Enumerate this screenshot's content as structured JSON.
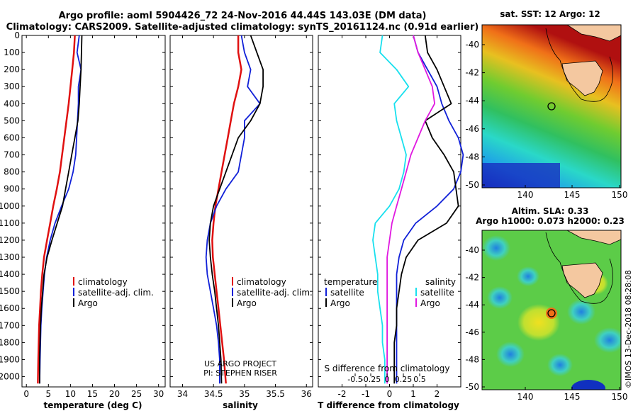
{
  "header": {
    "line1": "Argo profile: aoml 5904426_72 24-Nov-2016 44.44S 143.03E (DM data)",
    "line2": "Climatology: CARS2009. Satellite-adjusted climatology: synTS_20161124.nc (0.91d earlier)"
  },
  "colors": {
    "climatology": "#e01010",
    "satellite": "#1020d8",
    "argo": "#000000",
    "sat_salinity": "#18e0ee",
    "argo_salinity": "#e018e0"
  },
  "chart_data": [
    {
      "id": "temperature",
      "type": "line",
      "xlabel": "temperature (deg C)",
      "ylabel": "",
      "xlim": [
        -1,
        31.5
      ],
      "ylim": [
        2060,
        0
      ],
      "xticks": [
        0,
        5,
        10,
        15,
        20,
        25,
        30
      ],
      "yticks": [
        0,
        100,
        200,
        300,
        400,
        500,
        600,
        700,
        800,
        900,
        1000,
        1100,
        1200,
        1300,
        1400,
        1500,
        1600,
        1700,
        1800,
        1900,
        2000
      ],
      "legend": [
        "climatology",
        "satellite-adj. clim.",
        "Argo"
      ],
      "series": [
        {
          "name": "climatology",
          "color": "#e01010",
          "x": [
            11.0,
            10.8,
            10.4,
            10.0,
            9.6,
            9.1,
            8.6,
            8.1,
            7.6,
            6.9,
            6.1,
            5.4,
            4.7,
            4.0,
            3.6,
            3.3,
            3.1,
            2.9,
            2.8,
            2.7,
            2.6
          ],
          "y": [
            0,
            100,
            200,
            300,
            400,
            500,
            600,
            700,
            800,
            900,
            1000,
            1100,
            1200,
            1300,
            1400,
            1500,
            1600,
            1700,
            1800,
            1900,
            2040
          ]
        },
        {
          "name": "satellite-adj. clim.",
          "color": "#1020d8",
          "x": [
            12.0,
            11.5,
            12.4,
            11.8,
            11.8,
            11.6,
            11.4,
            11.2,
            10.6,
            9.6,
            8.0,
            6.5,
            5.4,
            4.6,
            4.1,
            3.8,
            3.5,
            3.3,
            3.2,
            3.1,
            3.0
          ],
          "y": [
            0,
            100,
            200,
            300,
            400,
            500,
            600,
            700,
            800,
            900,
            1000,
            1100,
            1200,
            1300,
            1400,
            1500,
            1600,
            1700,
            1800,
            1900,
            2040
          ]
        },
        {
          "name": "Argo",
          "color": "#000000",
          "x": [
            12.6,
            12.5,
            12.4,
            12.2,
            12.0,
            11.7,
            11.0,
            10.3,
            9.6,
            8.9,
            8.2,
            7.0,
            5.8,
            4.7,
            4.0,
            3.7,
            3.4,
            3.2,
            3.1,
            3.0,
            3.0
          ],
          "y": [
            0,
            100,
            200,
            300,
            400,
            500,
            600,
            700,
            800,
            900,
            1000,
            1100,
            1200,
            1300,
            1400,
            1500,
            1600,
            1700,
            1800,
            1900,
            2040
          ]
        }
      ]
    },
    {
      "id": "salinity",
      "type": "line",
      "xlabel": "salinity",
      "xlim": [
        33.8,
        36.1
      ],
      "ylim": [
        2060,
        0
      ],
      "xticks": [
        34,
        34.5,
        35,
        35.5,
        36
      ],
      "legend": [
        "climatology",
        "satellite-adj. clim.",
        "Argo"
      ],
      "credit": [
        "US ARGO PROJECT",
        "PI: STEPHEN RISER"
      ],
      "series": [
        {
          "name": "climatology",
          "color": "#e01010",
          "x": [
            34.9,
            34.9,
            34.95,
            34.9,
            34.83,
            34.78,
            34.73,
            34.68,
            34.63,
            34.58,
            34.53,
            34.5,
            34.48,
            34.49,
            34.52,
            34.55,
            34.58,
            34.61,
            34.64,
            34.67,
            34.7
          ],
          "y": [
            0,
            100,
            200,
            300,
            400,
            500,
            600,
            700,
            800,
            900,
            1000,
            1100,
            1200,
            1300,
            1400,
            1500,
            1600,
            1700,
            1800,
            1900,
            2040
          ]
        },
        {
          "name": "satellite-adj. clim.",
          "color": "#1020d8",
          "x": [
            34.95,
            35.0,
            35.1,
            35.05,
            35.25,
            35.0,
            35.0,
            34.95,
            34.9,
            34.7,
            34.55,
            34.45,
            34.4,
            34.38,
            34.4,
            34.45,
            34.5,
            34.55,
            34.58,
            34.6,
            34.6
          ],
          "y": [
            0,
            100,
            200,
            300,
            400,
            500,
            600,
            700,
            800,
            900,
            1000,
            1100,
            1200,
            1300,
            1400,
            1500,
            1600,
            1700,
            1800,
            1900,
            2040
          ]
        },
        {
          "name": "Argo",
          "color": "#000000",
          "x": [
            35.1,
            35.2,
            35.3,
            35.3,
            35.25,
            35.1,
            34.9,
            34.8,
            34.7,
            34.6,
            34.5,
            34.45,
            34.43,
            34.45,
            34.48,
            34.52,
            34.55,
            34.58,
            34.6,
            34.62,
            34.63
          ],
          "y": [
            0,
            100,
            200,
            300,
            400,
            500,
            600,
            700,
            800,
            900,
            1000,
            1100,
            1200,
            1300,
            1400,
            1500,
            1600,
            1700,
            1800,
            1900,
            2040
          ]
        }
      ]
    },
    {
      "id": "difference",
      "type": "line",
      "xlabel": "T difference from climatology",
      "xlim": [
        -3,
        3
      ],
      "ylim": [
        2060,
        0
      ],
      "xticks": [
        -2,
        -1,
        0,
        1,
        2
      ],
      "secondary_label": "S difference from climatology",
      "secondary_ticks": [
        "-0.5",
        "-0.25",
        "0",
        "0.25",
        "0.5"
      ],
      "legend": {
        "temperature": [
          "satellite",
          "Argo"
        ],
        "salinity": [
          "satellite",
          "Argo"
        ]
      },
      "series": [
        {
          "name": "temperature satellite",
          "color": "#1020d8",
          "x": [
            1.0,
            1.2,
            1.6,
            2.0,
            2.2,
            2.5,
            2.9,
            3.1,
            3.0,
            2.7,
            2.0,
            1.1,
            0.6,
            0.4,
            0.3,
            0.3,
            0.3,
            0.3,
            0.3,
            0.3,
            0.3
          ],
          "y": [
            0,
            100,
            200,
            300,
            400,
            500,
            600,
            700,
            800,
            900,
            1000,
            1100,
            1200,
            1300,
            1400,
            1500,
            1600,
            1700,
            1800,
            1900,
            2040
          ]
        },
        {
          "name": "temperature Argo",
          "color": "#000000",
          "x": [
            1.5,
            1.6,
            2.0,
            2.3,
            2.6,
            1.5,
            1.8,
            2.3,
            2.7,
            2.8,
            2.9,
            2.4,
            1.2,
            0.7,
            0.5,
            0.4,
            0.3,
            0.3,
            0.2,
            0.2,
            0.2
          ],
          "y": [
            0,
            100,
            200,
            300,
            400,
            500,
            600,
            700,
            800,
            900,
            1000,
            1100,
            1200,
            1300,
            1400,
            1500,
            1600,
            1700,
            1800,
            1900,
            2040
          ]
        },
        {
          "name": "salinity satellite",
          "color": "#18e0ee",
          "x": [
            -0.3,
            -0.4,
            0.3,
            0.8,
            0.2,
            0.3,
            0.5,
            0.7,
            0.6,
            0.4,
            0.0,
            -0.6,
            -0.7,
            -0.6,
            -0.5,
            -0.5,
            -0.4,
            -0.3,
            -0.3,
            -0.2,
            -0.2
          ],
          "y": [
            0,
            100,
            200,
            300,
            400,
            500,
            600,
            700,
            800,
            900,
            1000,
            1100,
            1200,
            1300,
            1400,
            1500,
            1600,
            1700,
            1800,
            1900,
            2040
          ]
        },
        {
          "name": "salinity Argo",
          "color": "#e018e0",
          "x": [
            1.0,
            1.2,
            1.5,
            1.8,
            1.9,
            1.5,
            1.2,
            0.9,
            0.7,
            0.5,
            0.3,
            0.1,
            0.0,
            -0.1,
            -0.1,
            -0.1,
            -0.1,
            -0.1,
            -0.1,
            -0.1,
            -0.1
          ],
          "y": [
            0,
            100,
            200,
            300,
            400,
            500,
            600,
            700,
            800,
            900,
            1000,
            1100,
            1200,
            1300,
            1400,
            1500,
            1600,
            1700,
            1800,
            1900,
            2040
          ]
        }
      ]
    }
  ],
  "sst_map": {
    "title": "sat. SST: 12 Argo: 12",
    "lat_ticks": [
      "-40",
      "-42",
      "-44",
      "-46",
      "-48",
      "-50"
    ],
    "lon_ticks": [
      "140",
      "145",
      "150"
    ]
  },
  "sla_map": {
    "title1": "Altim. SLA: 0.33",
    "title2": "Argo h1000: 0.073 h2000: 0.23",
    "lat_ticks": [
      "-40",
      "-42",
      "-44",
      "-46",
      "-48",
      "-50"
    ],
    "lon_ticks": [
      "140",
      "145",
      "150"
    ]
  },
  "watermark": "©IMOS 13-Dec-2018 08:28:08"
}
